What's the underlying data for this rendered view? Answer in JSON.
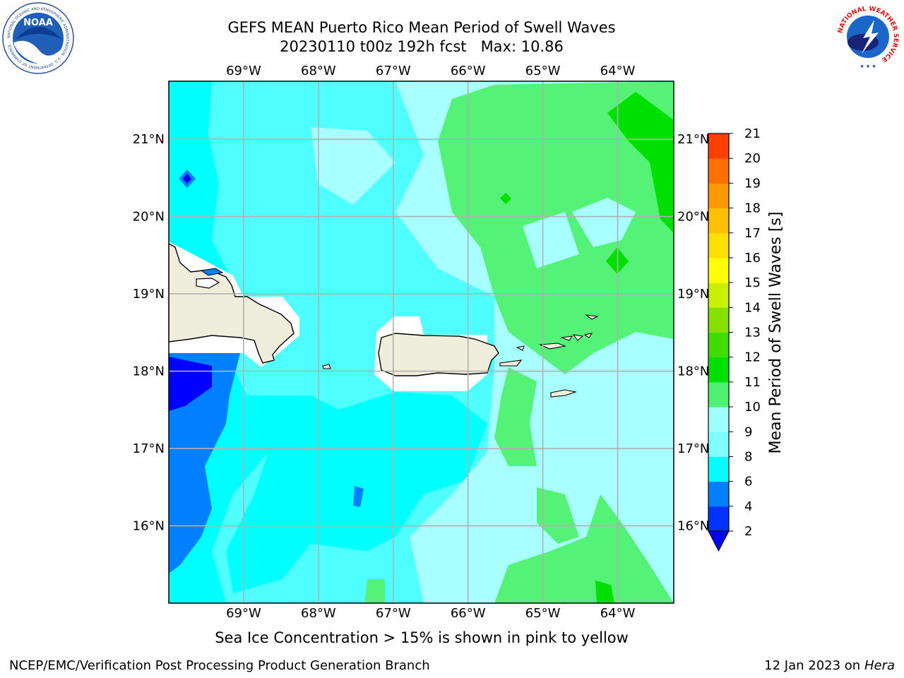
{
  "header": {
    "title_line1": "GEFS MEAN Puerto Rico Mean Period of Swell Waves",
    "title_line2": "20230110 t00z 192h fcst   Max: 10.86"
  },
  "logos": {
    "left": {
      "name": "noaa-logo",
      "text": "NOAA",
      "ring_text": "NATIONAL OCEANIC AND ATMOSPHERIC ADMINISTRATION · U.S. DEPARTMENT OF COMMERCE"
    },
    "right": {
      "name": "nws-logo",
      "ring_text": "NATIONAL WEATHER SERVICE"
    }
  },
  "map": {
    "region": "Puerto Rico",
    "lon_labels": [
      "69°W",
      "68°W",
      "67°W",
      "66°W",
      "65°W",
      "64°W"
    ],
    "lat_labels": [
      "21°N",
      "20°N",
      "19°N",
      "18°N",
      "17°N",
      "16°N"
    ],
    "lon_values": [
      -69,
      -68,
      -67,
      -66,
      -65,
      -64
    ],
    "lat_values": [
      21,
      20,
      19,
      18,
      17,
      16
    ],
    "extent": {
      "lon_min": -70,
      "lon_max": -63.25,
      "lat_min": 15,
      "lat_max": 21.75
    },
    "grid": true
  },
  "colorbar": {
    "label": "Mean Period of Swell Waves [s]",
    "ticks": [
      "2",
      "4",
      "6",
      "8",
      "9",
      "10",
      "11",
      "12",
      "13",
      "14",
      "15",
      "16",
      "17",
      "18",
      "19",
      "20",
      "21"
    ],
    "levels": [
      2,
      4,
      6,
      8,
      9,
      10,
      11,
      12,
      13,
      14,
      15,
      16,
      17,
      18,
      19,
      20,
      21
    ],
    "colors": [
      "#0033ff",
      "#0080ff",
      "#00ffff",
      "#80ffff",
      "#a0ffff",
      "#50f070",
      "#00e000",
      "#40dc00",
      "#88e000",
      "#c8f000",
      "#ffff00",
      "#ffe000",
      "#ffc000",
      "#ff9900",
      "#ff7000",
      "#ff4000",
      "#ff0000"
    ],
    "under_color": "#0000ff"
  },
  "footer": {
    "note": "Sea Ice Concentration > 15% is shown in pink to yellow",
    "left": "NCEP/EMC/Verification Post Processing Product Generation Branch",
    "right_prefix": "12 Jan 2023 on ",
    "right_host": "Hera"
  }
}
